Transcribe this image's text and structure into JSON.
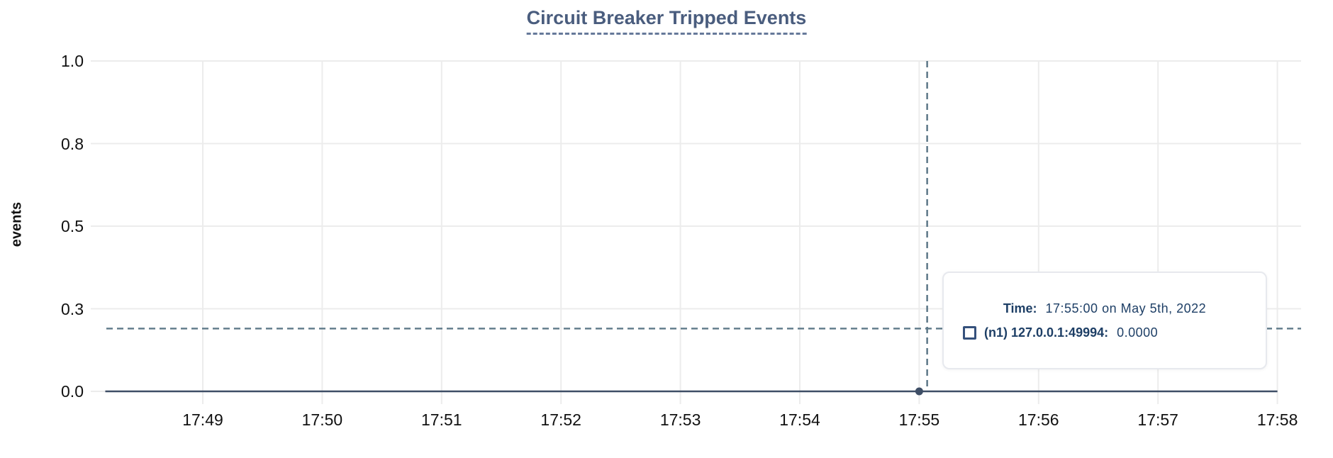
{
  "title": {
    "text": "Circuit Breaker Tripped Events"
  },
  "y_axis": {
    "label": "events",
    "ticks": [
      "1.0",
      "0.8",
      "0.5",
      "0.3",
      "0.0"
    ]
  },
  "x_axis": {
    "ticks": [
      "17:49",
      "17:50",
      "17:51",
      "17:52",
      "17:53",
      "17:54",
      "17:55",
      "17:56",
      "17:57",
      "17:58"
    ]
  },
  "tooltip": {
    "time_label": "Time:",
    "time_value": "17:55:00 on May 5th, 2022",
    "series_swatch": "square-outline-icon",
    "series_label": "(n1) 127.0.0.1:49994:",
    "series_value": "0.0000"
  },
  "chart_data": {
    "type": "line",
    "title": "Circuit Breaker Tripped Events",
    "xlabel": "",
    "ylabel": "events",
    "ylim": [
      0,
      1
    ],
    "grid": true,
    "y_tick_labels": [
      "1.0",
      "0.8",
      "0.5",
      "0.3",
      "0.0"
    ],
    "y_tick_values": [
      1.0,
      0.75,
      0.5,
      0.25,
      0.0
    ],
    "x_tick_labels": [
      "17:49",
      "17:50",
      "17:51",
      "17:52",
      "17:53",
      "17:54",
      "17:55",
      "17:56",
      "17:57",
      "17:58"
    ],
    "x_range": [
      "17:48:11",
      "17:58:00"
    ],
    "series": [
      {
        "name": "(n1) 127.0.0.1:49994",
        "x": [
          "17:48:11",
          "17:49:00",
          "17:50:00",
          "17:51:00",
          "17:52:00",
          "17:53:00",
          "17:54:00",
          "17:55:00",
          "17:56:00",
          "17:57:00",
          "17:58:00"
        ],
        "values": [
          0,
          0,
          0,
          0,
          0,
          0,
          0,
          0,
          0,
          0,
          0
        ]
      }
    ],
    "highlighted_point": {
      "series": "(n1) 127.0.0.1:49994",
      "time": "17:55:00",
      "date": "May 5th, 2022",
      "value": 0,
      "formatted_value": "0.0000"
    },
    "crosshair": {
      "x": "17:55:04",
      "y_value": 0.19
    },
    "legend_position": "tooltip"
  },
  "colors": {
    "background": "#ffffff",
    "title": "#4a5d7e",
    "title_underline": "#66799a",
    "axis_text": "#111111",
    "grid": "#ececec",
    "line": "#3e4e66",
    "marker": "#3e4e66",
    "crosshair": "#5d7888",
    "tooltip_text": "#1e3f66",
    "tooltip_border": "#e7e9ee",
    "swatch_border": "#35517c"
  }
}
